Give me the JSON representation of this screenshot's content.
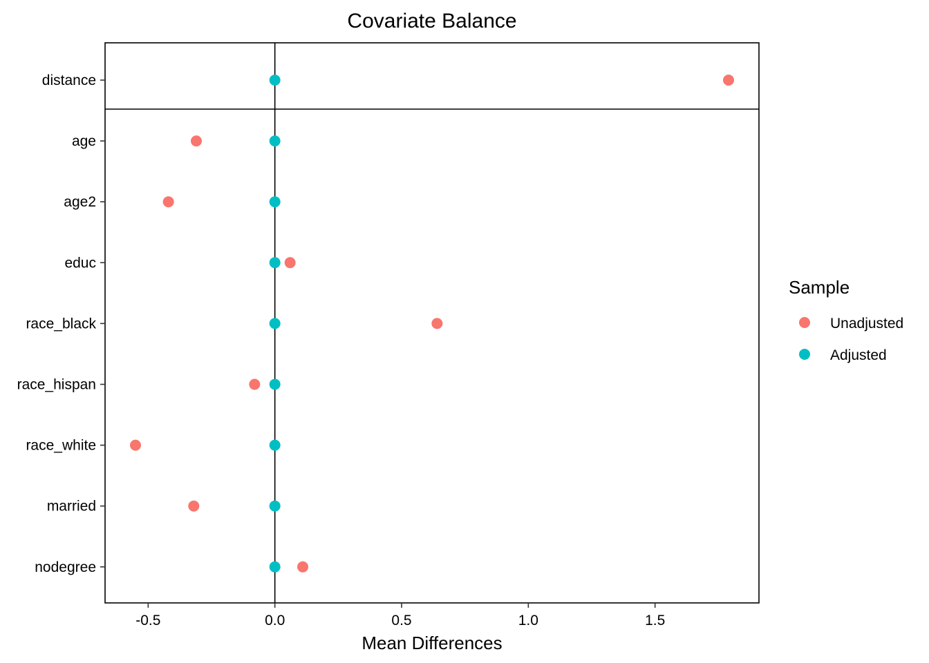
{
  "chart_data": {
    "type": "scatter",
    "title": "Covariate Balance",
    "xlabel": "Mean Differences",
    "ylabel": "",
    "xlim": [
      -0.67,
      1.91
    ],
    "xticks": [
      -0.5,
      0.0,
      0.5,
      1.0,
      1.5
    ],
    "xtick_labels": [
      "-0.5",
      "0.0",
      "0.5",
      "1.0",
      "1.5"
    ],
    "reference_line_x": 0,
    "categories": [
      "distance",
      "age",
      "age2",
      "educ",
      "race_black",
      "race_hispan",
      "race_white",
      "married",
      "nodegree"
    ],
    "series": [
      {
        "name": "Unadjusted",
        "color": "#F8766D",
        "values": [
          1.79,
          -0.31,
          -0.42,
          0.06,
          0.64,
          -0.08,
          -0.55,
          -0.32,
          0.11
        ]
      },
      {
        "name": "Adjusted",
        "color": "#00BFC4",
        "values": [
          0.0,
          0.0,
          0.0,
          0.0,
          0.0,
          0.0,
          0.0,
          0.0,
          0.0
        ]
      }
    ],
    "legend": {
      "title": "Sample",
      "position": "right"
    },
    "grid": false
  }
}
